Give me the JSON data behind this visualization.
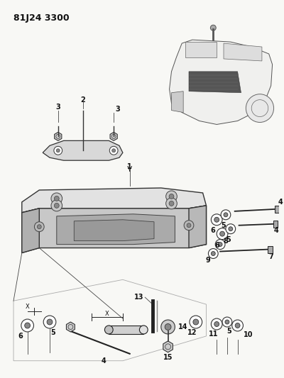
{
  "title": "81J24 3300",
  "bg": "#f8f8f5",
  "lc": "#222222",
  "tc": "#111111",
  "fig_w": 4.0,
  "fig_h": 5.33,
  "dpi": 100
}
